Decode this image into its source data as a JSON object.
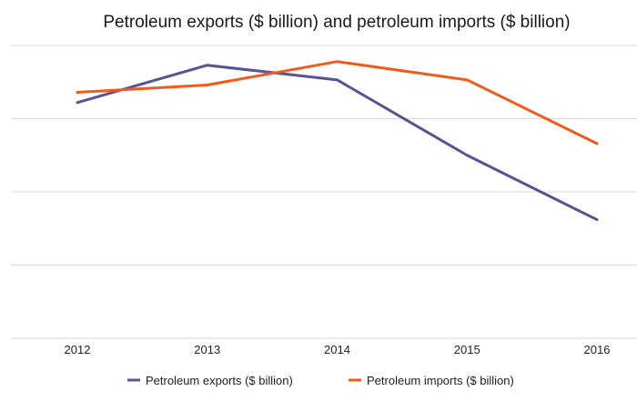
{
  "chart_data": {
    "type": "line",
    "title": "Petroleum exports ($ billion) and petroleum imports ($ billion)",
    "xlabel": "",
    "ylabel": "",
    "categories": [
      "2012",
      "2013",
      "2014",
      "2015",
      "2016"
    ],
    "series": [
      {
        "name": "Petroleum exports ($ billion)",
        "color": "#5a5292",
        "values": [
          322,
          373,
          353,
          250,
          162
        ]
      },
      {
        "name": "Petroleum imports ($ billion)",
        "color": "#f25a1a",
        "values": [
          336,
          346,
          378,
          353,
          266
        ]
      }
    ],
    "ylim": [
      0,
      400
    ],
    "grid": true,
    "legend": "bottom"
  }
}
